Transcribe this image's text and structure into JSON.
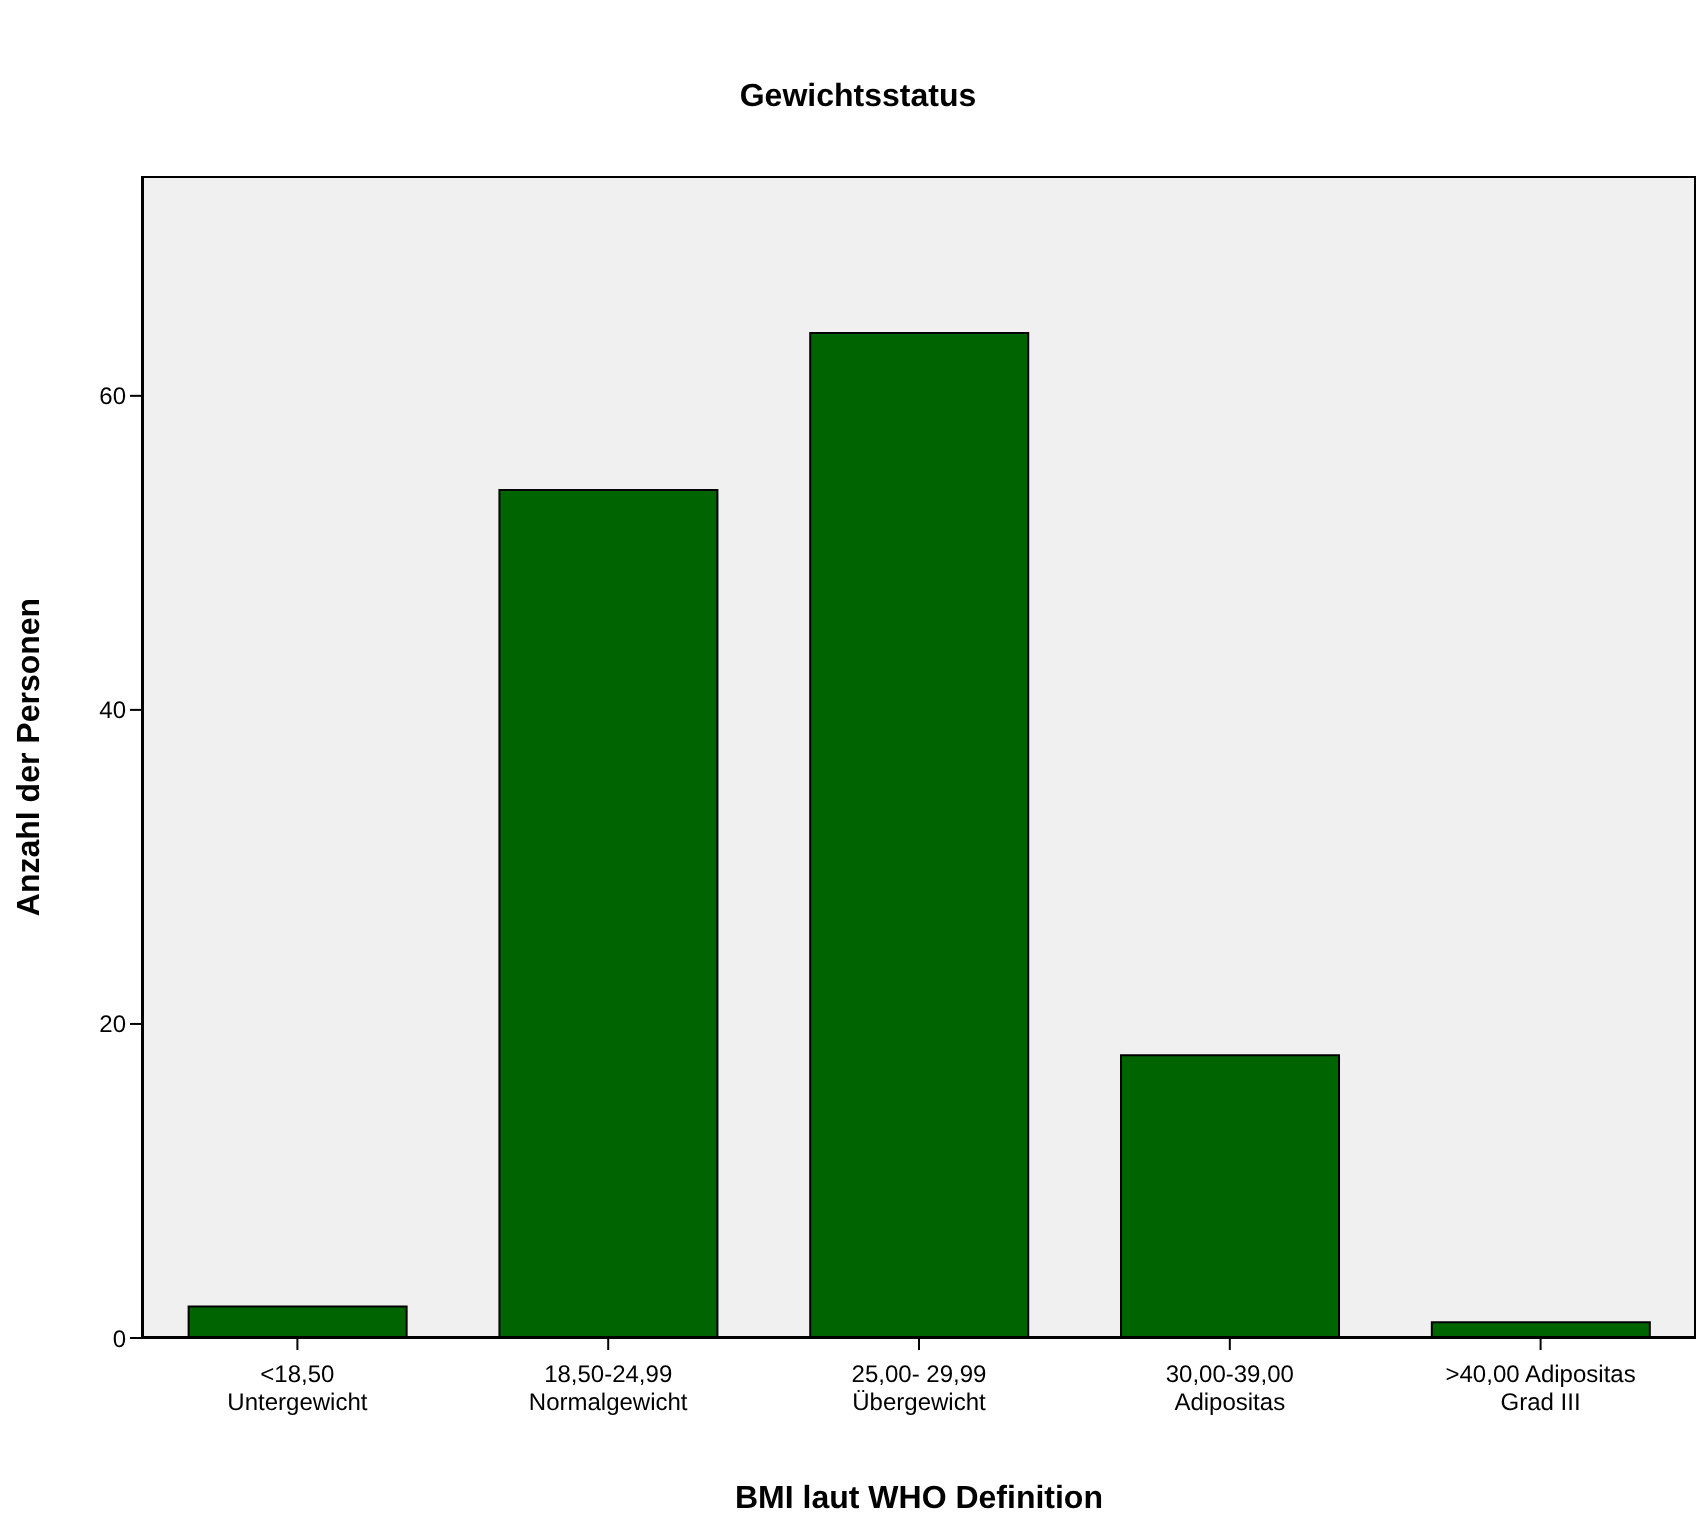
{
  "chart_data": {
    "type": "bar",
    "title": "Gewichtsstatus",
    "xlabel": "BMI laut WHO Definition",
    "ylabel": "Anzahl der Personen",
    "categories": [
      "<18,50\nUntergewicht",
      "18,50-24,99\nNormalgewicht",
      "25,00- 29,99\nÜbergewicht",
      "30,00-39,00\nAdipositas",
      ">40,00 Adipositas\nGrad III"
    ],
    "values": [
      2,
      54,
      64,
      18,
      1
    ],
    "color": "#006400",
    "ylim": [
      0,
      74
    ],
    "yticks": [
      0,
      20,
      40,
      60
    ],
    "grid": false,
    "legend": false
  }
}
